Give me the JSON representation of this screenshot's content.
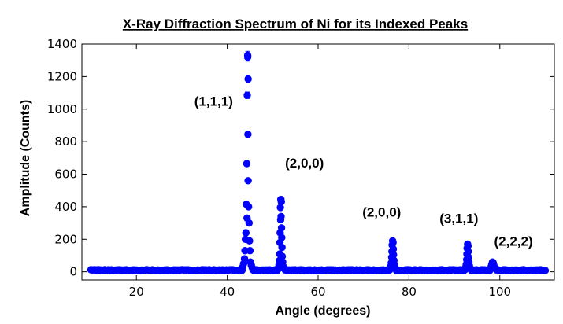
{
  "chart_data": {
    "type": "scatter",
    "title": "X-Ray Diffraction Spectrum of Ni for its Indexed Peaks",
    "xlabel": "Angle (degrees)",
    "ylabel": "Amplitude (Counts)",
    "xlim": [
      8,
      112
    ],
    "ylim": [
      -50,
      1400
    ],
    "xticks": [
      20,
      40,
      60,
      80,
      100
    ],
    "yticks": [
      0,
      200,
      400,
      600,
      800,
      1000,
      1200,
      1400
    ],
    "grid": false,
    "marker_color": "#0000ff",
    "error_bars": true,
    "x_start": 10,
    "x_end": 110,
    "background_level": 10,
    "peaks": [
      {
        "center": 44.5,
        "points": [
          [
            44.5,
            1330,
            25
          ],
          [
            44.5,
            1320,
            25
          ],
          [
            44.6,
            1185,
            22
          ],
          [
            44.4,
            1085,
            20
          ],
          [
            44.55,
            845,
            18
          ],
          [
            44.3,
            665,
            15
          ],
          [
            44.6,
            560,
            12
          ],
          [
            44.2,
            415,
            10
          ],
          [
            44.7,
            400,
            10
          ],
          [
            44.35,
            330,
            9
          ],
          [
            44.8,
            300,
            8
          ],
          [
            44.1,
            240,
            7
          ],
          [
            44.0,
            200,
            6
          ],
          [
            44.9,
            190,
            6
          ],
          [
            43.9,
            130,
            5
          ],
          [
            45.0,
            130,
            5
          ],
          [
            43.8,
            80,
            4
          ],
          [
            45.1,
            60,
            4
          ],
          [
            43.6,
            50,
            3
          ],
          [
            45.3,
            40,
            3
          ],
          [
            43.4,
            30,
            2
          ],
          [
            45.5,
            25,
            2
          ]
        ]
      },
      {
        "center": 51.8,
        "points": [
          [
            51.8,
            445,
            12
          ],
          [
            51.9,
            430,
            12
          ],
          [
            51.7,
            395,
            11
          ],
          [
            51.85,
            340,
            10
          ],
          [
            51.75,
            320,
            10
          ],
          [
            51.95,
            270,
            9
          ],
          [
            51.65,
            240,
            8
          ],
          [
            52.0,
            210,
            7
          ],
          [
            51.6,
            180,
            6
          ],
          [
            52.05,
            150,
            6
          ],
          [
            51.55,
            110,
            5
          ],
          [
            52.1,
            95,
            5
          ],
          [
            51.5,
            70,
            4
          ],
          [
            52.2,
            60,
            4
          ],
          [
            51.4,
            45,
            3
          ],
          [
            52.3,
            35,
            3
          ],
          [
            51.3,
            28,
            2
          ],
          [
            52.4,
            25,
            2
          ]
        ]
      },
      {
        "center": 76.4,
        "points": [
          [
            76.4,
            190,
            7
          ],
          [
            76.5,
            180,
            7
          ],
          [
            76.3,
            165,
            6
          ],
          [
            76.55,
            140,
            6
          ],
          [
            76.25,
            125,
            5
          ],
          [
            76.6,
            105,
            5
          ],
          [
            76.2,
            90,
            4
          ],
          [
            76.7,
            70,
            4
          ],
          [
            76.1,
            55,
            3
          ],
          [
            76.8,
            45,
            3
          ],
          [
            76.0,
            35,
            2
          ],
          [
            76.9,
            30,
            2
          ],
          [
            75.9,
            25,
            2
          ],
          [
            77.0,
            22,
            2
          ]
        ]
      },
      {
        "center": 92.9,
        "points": [
          [
            92.9,
            170,
            7
          ],
          [
            93.0,
            160,
            6
          ],
          [
            92.8,
            145,
            6
          ],
          [
            93.05,
            125,
            5
          ],
          [
            92.75,
            110,
            5
          ],
          [
            93.1,
            90,
            4
          ],
          [
            92.7,
            75,
            4
          ],
          [
            93.2,
            60,
            3
          ],
          [
            92.6,
            45,
            3
          ],
          [
            93.3,
            38,
            2
          ],
          [
            92.5,
            30,
            2
          ],
          [
            93.4,
            25,
            2
          ]
        ]
      },
      {
        "center": 98.4,
        "points": [
          [
            98.4,
            60,
            4
          ],
          [
            98.5,
            58,
            4
          ],
          [
            98.3,
            52,
            4
          ],
          [
            98.6,
            48,
            3
          ],
          [
            98.2,
            42,
            3
          ],
          [
            98.7,
            38,
            3
          ],
          [
            98.1,
            32,
            2
          ],
          [
            98.8,
            28,
            2
          ],
          [
            98.0,
            24,
            2
          ],
          [
            98.9,
            22,
            2
          ]
        ]
      }
    ],
    "annotations": [
      {
        "text": "(1,1,1)",
        "x": 37,
        "y": 1020
      },
      {
        "text": "(2,0,0)",
        "x": 57,
        "y": 640
      },
      {
        "text": "(2,0,0)",
        "x": 74,
        "y": 340
      },
      {
        "text": "(3,1,1)",
        "x": 91,
        "y": 300
      },
      {
        "text": "(2,2,2)",
        "x": 103,
        "y": 160
      }
    ]
  }
}
